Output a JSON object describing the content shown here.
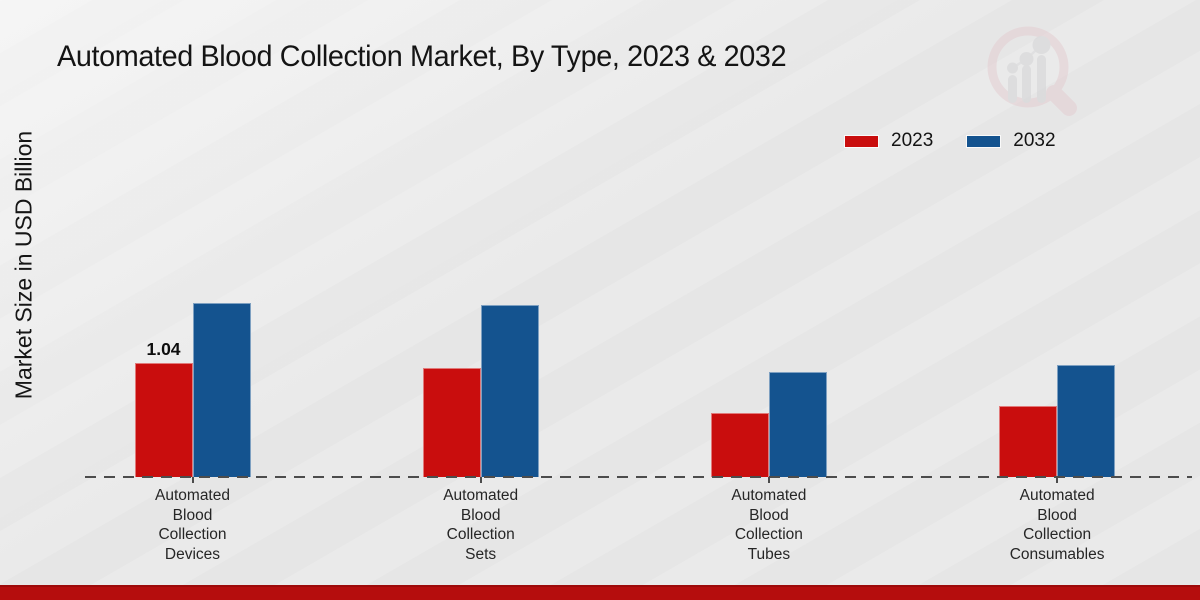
{
  "header": {
    "title": "Automated Blood Collection Market, By Type, 2023 & 2032"
  },
  "watermark": {
    "icon": "bar-chart-magnifier-logo-icon",
    "ring_color": "#e4cbd0",
    "glyph_color": "#d2d2d4"
  },
  "chart_data": {
    "type": "bar",
    "title": "Automated Blood Collection Market, By Type, 2023 & 2032",
    "xlabel": "",
    "ylabel": "Market Size in USD Billion",
    "categories": [
      "Automated Blood Collection Devices",
      "Automated Blood Collection Sets",
      "Automated Blood Collection Tubes",
      "Automated Blood Collection Consumables"
    ],
    "series": [
      {
        "name": "2023",
        "color": "#c90d0d",
        "values": [
          1.04,
          0.99,
          0.58,
          0.65
        ]
      },
      {
        "name": "2032",
        "color": "#14538f",
        "values": [
          1.59,
          1.57,
          0.96,
          1.02
        ]
      }
    ],
    "annotations": [
      {
        "category_index": 0,
        "series": "2023",
        "label": "1.04"
      }
    ],
    "ylim": [
      0,
      1.8
    ],
    "grid": false,
    "y_axis_ticks_visible": false,
    "baseline_style": "dashed",
    "legend_position": "top-right"
  },
  "footer": {
    "strip_color": "#b50d0d"
  }
}
